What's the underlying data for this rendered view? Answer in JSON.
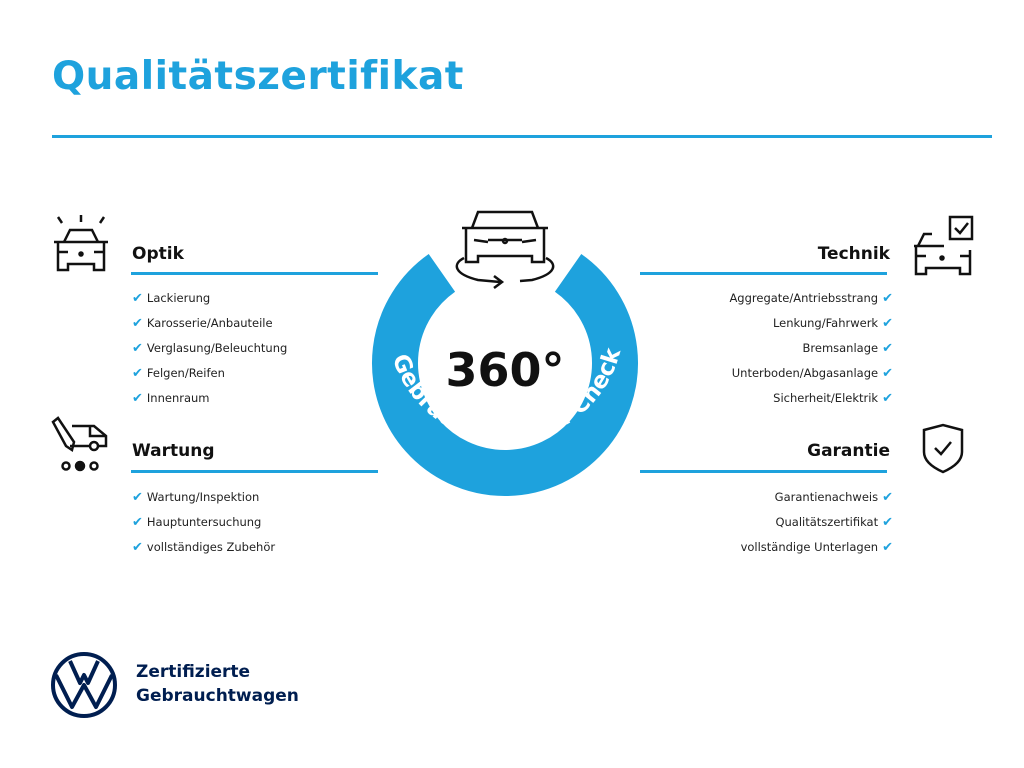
{
  "title": "Qualitätszertifikat",
  "badge": {
    "degrees": "360°",
    "label": "Gebrauchtwagen-Check"
  },
  "sections": {
    "optik": {
      "title": "Optik",
      "icon": "car-lights-icon",
      "items": [
        "Lackierung",
        "Karosserie/Anbauteile",
        "Verglasung/Beleuchtung",
        "Felgen/Reifen",
        "Innenraum"
      ]
    },
    "wartung": {
      "title": "Wartung",
      "icon": "car-service-icon",
      "items": [
        "Wartung/Inspektion",
        "Hauptuntersuchung",
        "vollständiges Zubehör"
      ]
    },
    "technik": {
      "title": "Technik",
      "icon": "car-checkbox-icon",
      "items": [
        "Aggregate/Antriebsstrang",
        "Lenkung/Fahrwerk",
        "Bremsanlage",
        "Unterboden/Abgasanlage",
        "Sicherheit/Elektrik"
      ]
    },
    "garantie": {
      "title": "Garantie",
      "icon": "shield-check-icon",
      "items": [
        "Garantienachweis",
        "Qualitätszertifikat",
        "vollständige Unterlagen"
      ]
    }
  },
  "check_mark": "✔",
  "footer": {
    "line1": "Zertifizierte",
    "line2": "Gebrauchtwagen"
  },
  "colors": {
    "accent": "#1ea2dd",
    "brand_navy": "#001e50"
  }
}
